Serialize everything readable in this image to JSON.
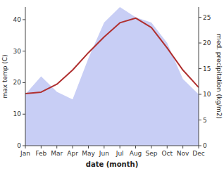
{
  "chart_data": {
    "type": "line",
    "xlabel": "date (month)",
    "ylabel": "max temp (C)",
    "y2label": "med. precipitation (kg/m2)",
    "categories": [
      "Jan",
      "Feb",
      "Mar",
      "Apr",
      "May",
      "Jun",
      "Jul",
      "Aug",
      "Sep",
      "Oct",
      "Nov",
      "Dec"
    ],
    "series": [
      {
        "type": "area",
        "axis": "y2",
        "color": "#c8cef5",
        "values": [
          10.0,
          13.5,
          10.5,
          9.0,
          17.0,
          24.0,
          27.0,
          25.0,
          24.0,
          20.0,
          13.0,
          10.0
        ]
      },
      {
        "type": "line",
        "color": "#b03030",
        "values": [
          16.5,
          17.0,
          19.5,
          24.0,
          29.5,
          34.5,
          39.0,
          40.5,
          37.5,
          31.0,
          24.0,
          18.5
        ]
      }
    ],
    "ylim": [
      0,
      44
    ],
    "yticks": [
      0,
      10,
      20,
      30,
      40
    ],
    "y2lim": [
      0,
      27
    ],
    "y2ticks": [
      0,
      5,
      10,
      15,
      20,
      25
    ],
    "grid": false
  }
}
